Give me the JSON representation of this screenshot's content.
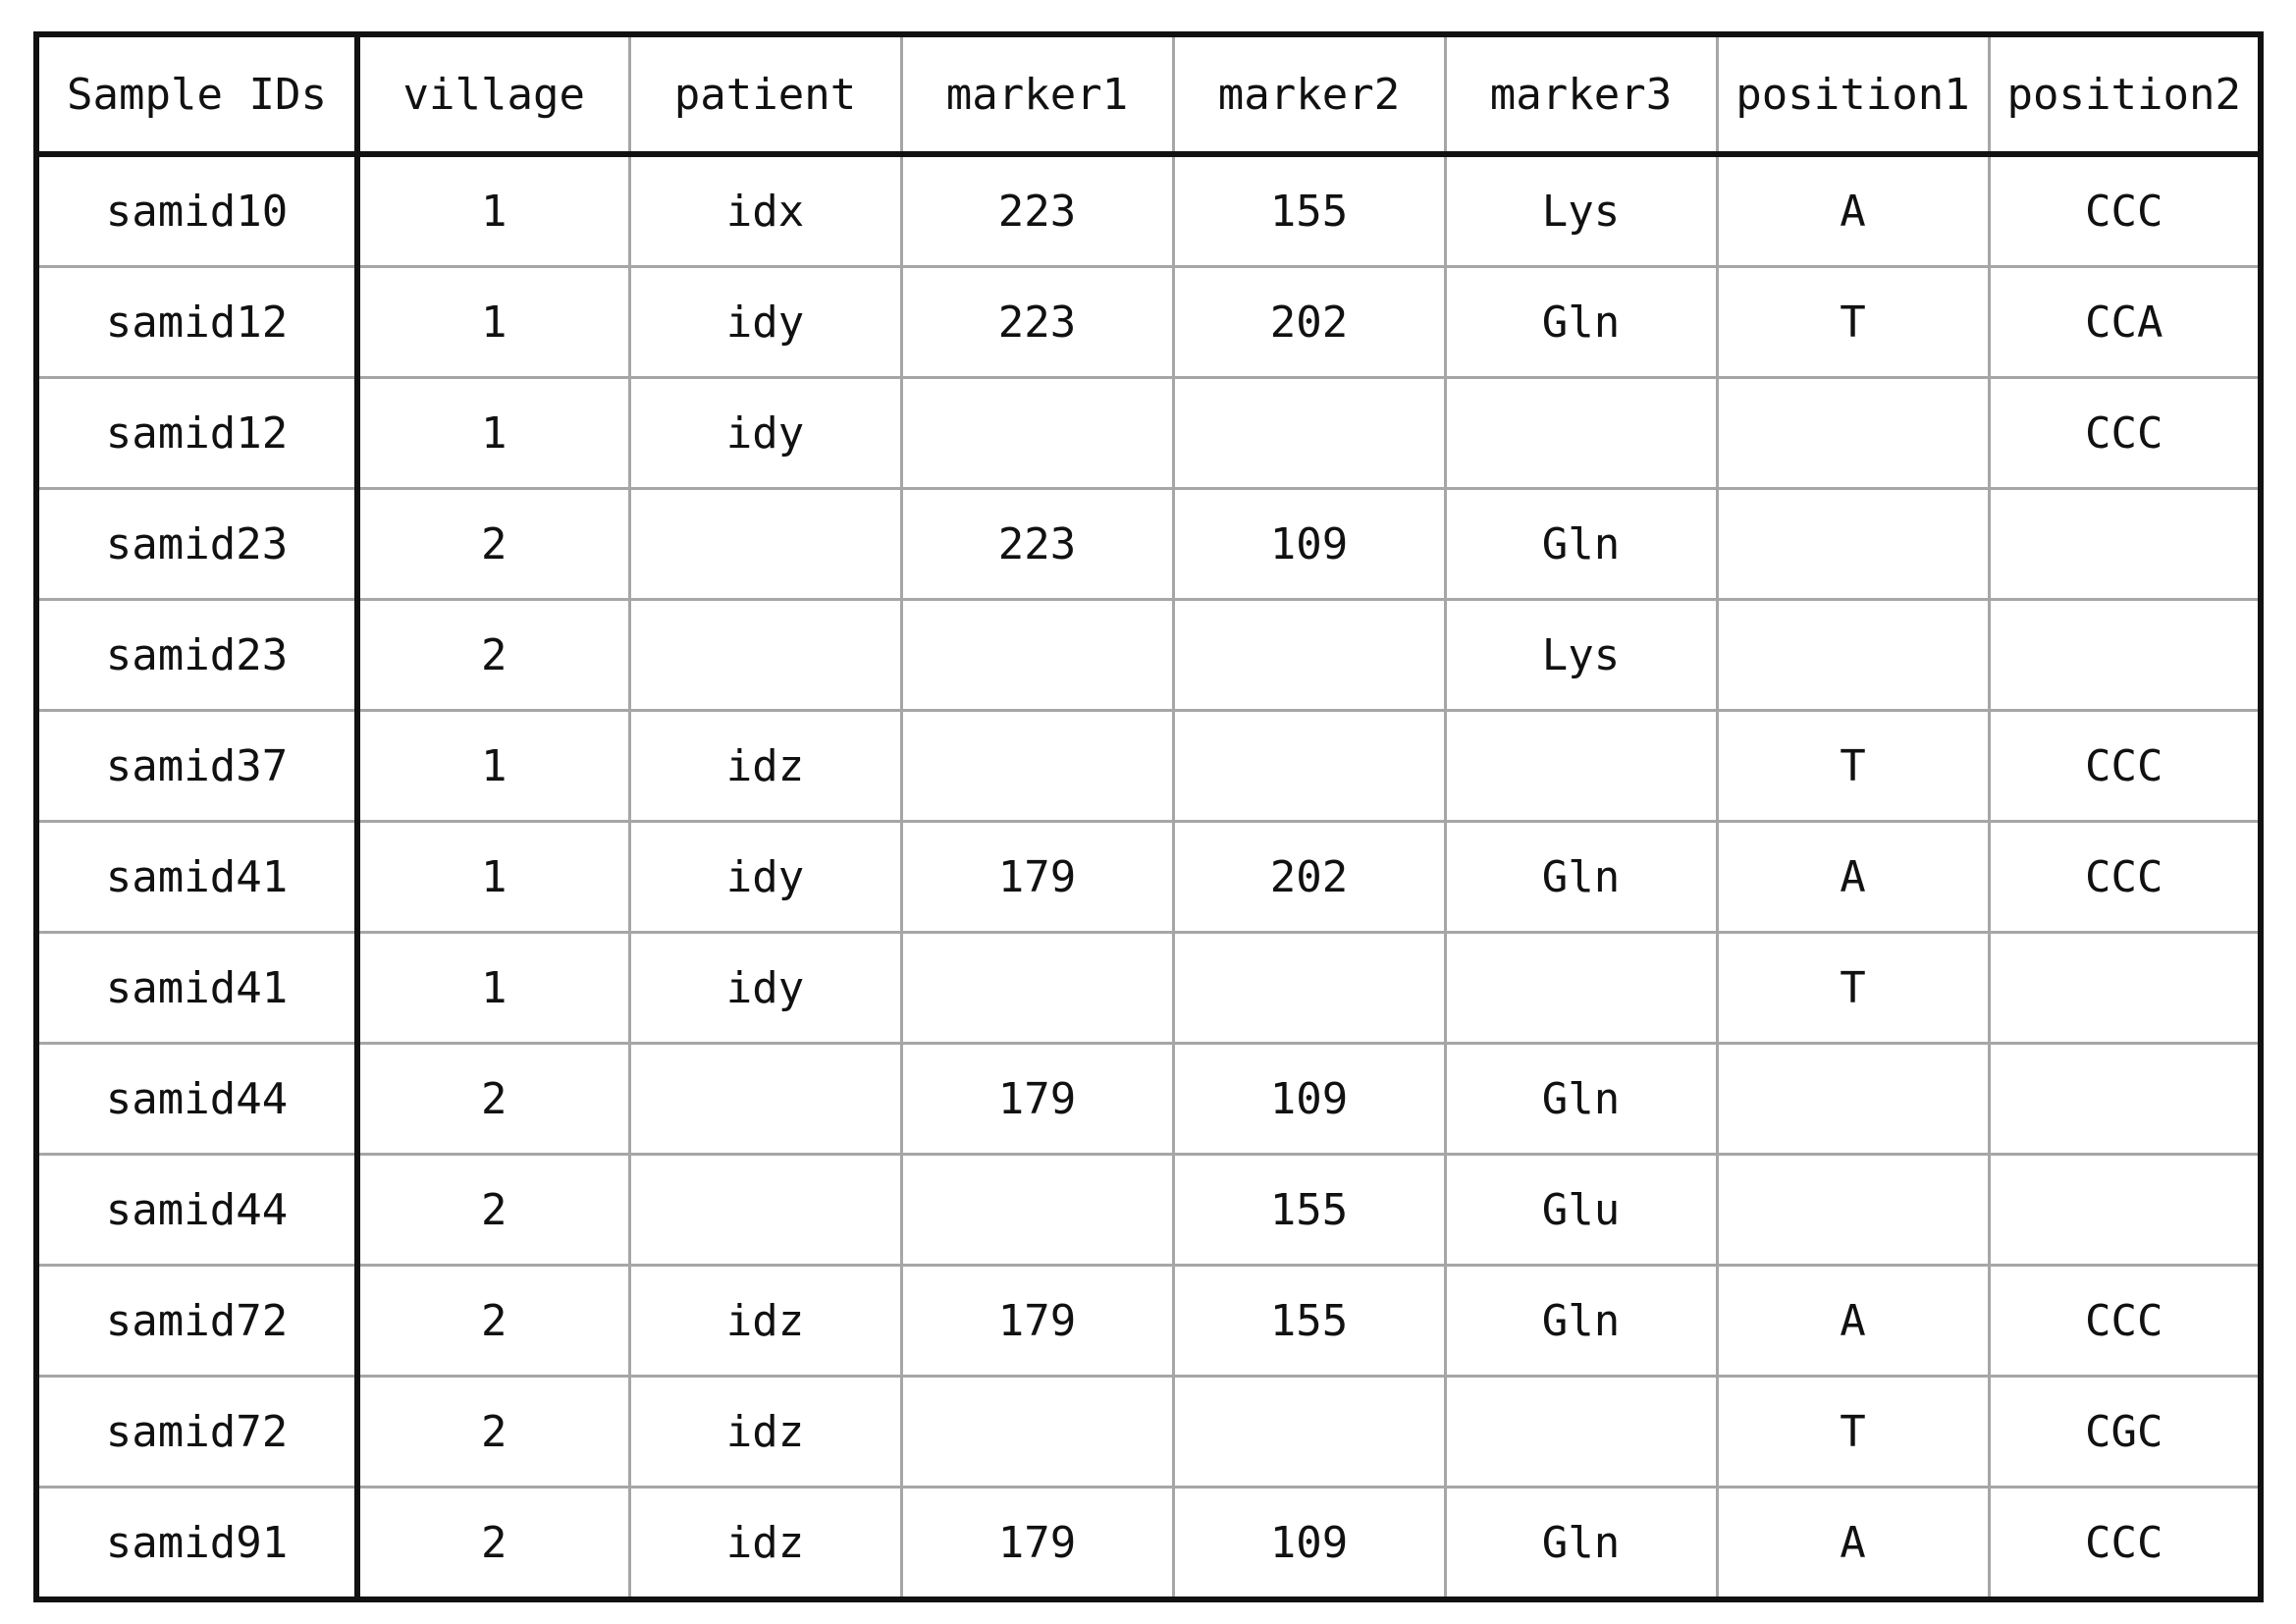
{
  "table": {
    "headers": [
      "Sample IDs",
      "village",
      "patient",
      "marker1",
      "marker2",
      "marker3",
      "position1",
      "position2"
    ],
    "rows": [
      [
        "samid10",
        "1",
        "idx",
        "223",
        "155",
        "Lys",
        "A",
        "CCC"
      ],
      [
        "samid12",
        "1",
        "idy",
        "223",
        "202",
        "Gln",
        "T",
        "CCA"
      ],
      [
        "samid12",
        "1",
        "idy",
        "",
        "",
        "",
        "",
        "CCC"
      ],
      [
        "samid23",
        "2",
        "",
        "223",
        "109",
        "Gln",
        "",
        ""
      ],
      [
        "samid23",
        "2",
        "",
        "",
        "",
        "Lys",
        "",
        ""
      ],
      [
        "samid37",
        "1",
        "idz",
        "",
        "",
        "",
        "T",
        "CCC"
      ],
      [
        "samid41",
        "1",
        "idy",
        "179",
        "202",
        "Gln",
        "A",
        "CCC"
      ],
      [
        "samid41",
        "1",
        "idy",
        "",
        "",
        "",
        "T",
        ""
      ],
      [
        "samid44",
        "2",
        "",
        "179",
        "109",
        "Gln",
        "",
        ""
      ],
      [
        "samid44",
        "2",
        "",
        "",
        "155",
        "Glu",
        "",
        ""
      ],
      [
        "samid72",
        "2",
        "idz",
        "179",
        "155",
        "Gln",
        "A",
        "CCC"
      ],
      [
        "samid72",
        "2",
        "idz",
        "",
        "",
        "",
        "T",
        "CGC"
      ],
      [
        "samid91",
        "2",
        "idz",
        "179",
        "109",
        "Gln",
        "A",
        "CCC"
      ]
    ]
  },
  "colors": {
    "outer_border": "#111111",
    "inner_grid": "#a6a6a6",
    "text": "#111111",
    "background": "#ffffff"
  }
}
